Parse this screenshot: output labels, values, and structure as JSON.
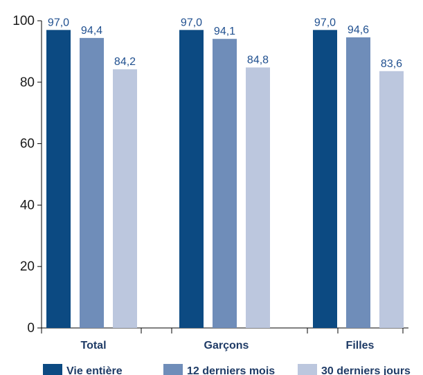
{
  "chart_data": {
    "type": "bar",
    "categories": [
      "Total",
      "Garçons",
      "Filles"
    ],
    "series": [
      {
        "name": "Vie entière",
        "values": [
          97.0,
          97.0,
          97.0
        ],
        "labels": [
          "97,0",
          "97,0",
          "97,0"
        ],
        "color": "#0c4a82"
      },
      {
        "name": "12 derniers mois",
        "values": [
          94.4,
          94.1,
          94.6
        ],
        "labels": [
          "94,4",
          "94,1",
          "94,6"
        ],
        "color": "#6f8db9"
      },
      {
        "name": "30 derniers jours",
        "values": [
          84.2,
          84.8,
          83.6
        ],
        "labels": [
          "84,2",
          "84,8",
          "83,6"
        ],
        "color": "#bcc7de"
      }
    ],
    "ylim": [
      0,
      100
    ],
    "yticks": [
      "0",
      "20",
      "40",
      "60",
      "80",
      "100"
    ],
    "grid": false,
    "legend_position": "bottom"
  }
}
